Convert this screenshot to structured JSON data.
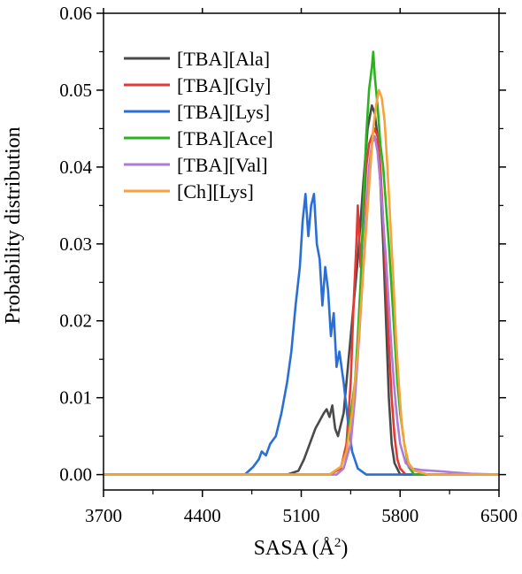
{
  "chart_data": {
    "type": "line",
    "title": "",
    "xlabel": "SASA (Å",
    "xlabel_sup": "2",
    "xlabel_close": ")",
    "ylabel": "Probability distribution",
    "xlim": [
      3700,
      6500
    ],
    "ylim": [
      -0.002,
      0.06
    ],
    "x_ticks": [
      3700,
      4400,
      5100,
      5800,
      6500
    ],
    "x_tick_labels": [
      "3700",
      "4400",
      "5100",
      "5800",
      "6500"
    ],
    "y_ticks": [
      0.0,
      0.01,
      0.02,
      0.03,
      0.04,
      0.05,
      0.06
    ],
    "y_tick_labels": [
      "0.00",
      "0.01",
      "0.02",
      "0.03",
      "0.04",
      "0.05",
      "0.06"
    ],
    "grid": false,
    "legend_position": "top-left",
    "series": [
      {
        "name": "[TBA][Ala]",
        "color": "#4a4a4a",
        "x": [
          3700,
          5000,
          5080,
          5120,
          5160,
          5200,
          5230,
          5260,
          5280,
          5300,
          5320,
          5340,
          5360,
          5400,
          5450,
          5500,
          5540,
          5570,
          5600,
          5620,
          5640,
          5660,
          5680,
          5700,
          5720,
          5740,
          5760,
          5800,
          6500
        ],
        "y": [
          0,
          0,
          0.0005,
          0.002,
          0.004,
          0.006,
          0.007,
          0.008,
          0.0085,
          0.0075,
          0.009,
          0.006,
          0.005,
          0.008,
          0.018,
          0.028,
          0.038,
          0.045,
          0.048,
          0.047,
          0.044,
          0.038,
          0.03,
          0.02,
          0.01,
          0.004,
          0.0015,
          0,
          0
        ]
      },
      {
        "name": "[TBA][Gly]",
        "color": "#e53935",
        "x": [
          3700,
          5300,
          5380,
          5420,
          5450,
          5470,
          5490,
          5500,
          5520,
          5540,
          5560,
          5580,
          5600,
          5620,
          5640,
          5660,
          5680,
          5700,
          5720,
          5740,
          5760,
          5780,
          5800,
          5840,
          6500
        ],
        "y": [
          0,
          0,
          0.0008,
          0.004,
          0.012,
          0.022,
          0.03,
          0.035,
          0.027,
          0.033,
          0.04,
          0.043,
          0.044,
          0.045,
          0.044,
          0.04,
          0.033,
          0.025,
          0.017,
          0.01,
          0.005,
          0.002,
          0.0008,
          0,
          0
        ]
      },
      {
        "name": "[TBA][Lys]",
        "color": "#2a6fd6",
        "x": [
          3700,
          4700,
          4760,
          4800,
          4820,
          4850,
          4880,
          4920,
          4960,
          5000,
          5030,
          5060,
          5090,
          5110,
          5130,
          5150,
          5170,
          5190,
          5210,
          5230,
          5250,
          5270,
          5290,
          5310,
          5330,
          5350,
          5370,
          5400,
          5430,
          5460,
          5500,
          5560,
          6500
        ],
        "y": [
          0,
          0,
          0.001,
          0.002,
          0.003,
          0.0025,
          0.004,
          0.005,
          0.008,
          0.012,
          0.016,
          0.022,
          0.027,
          0.033,
          0.0365,
          0.031,
          0.035,
          0.0365,
          0.03,
          0.028,
          0.022,
          0.027,
          0.024,
          0.018,
          0.021,
          0.014,
          0.016,
          0.012,
          0.007,
          0.003,
          0.0008,
          0,
          0
        ]
      },
      {
        "name": "[TBA][Ace]",
        "color": "#2bb31f",
        "x": [
          3700,
          5300,
          5380,
          5420,
          5450,
          5480,
          5500,
          5520,
          5540,
          5560,
          5580,
          5600,
          5610,
          5620,
          5640,
          5660,
          5680,
          5700,
          5720,
          5740,
          5760,
          5780,
          5800,
          5830,
          5860,
          5900,
          6500
        ],
        "y": [
          0,
          0,
          0.001,
          0.003,
          0.008,
          0.012,
          0.018,
          0.025,
          0.035,
          0.044,
          0.05,
          0.053,
          0.055,
          0.052,
          0.048,
          0.043,
          0.04,
          0.035,
          0.03,
          0.024,
          0.018,
          0.012,
          0.008,
          0.004,
          0.001,
          0,
          0
        ]
      },
      {
        "name": "[TBA][Val]",
        "color": "#b07ad8",
        "x": [
          3700,
          5350,
          5400,
          5450,
          5480,
          5510,
          5540,
          5560,
          5580,
          5600,
          5620,
          5640,
          5660,
          5680,
          5700,
          5720,
          5740,
          5760,
          5780,
          5800,
          5840,
          5880,
          5950,
          6100,
          6300,
          6500
        ],
        "y": [
          0,
          0,
          0.0008,
          0.004,
          0.01,
          0.018,
          0.027,
          0.034,
          0.04,
          0.043,
          0.044,
          0.042,
          0.038,
          0.033,
          0.028,
          0.022,
          0.016,
          0.011,
          0.007,
          0.004,
          0.0015,
          0.0008,
          0.0006,
          0.0004,
          0.0001,
          0
        ]
      },
      {
        "name": "[Ch][Lys]",
        "color": "#f7a23b",
        "x": [
          3700,
          5300,
          5380,
          5420,
          5460,
          5500,
          5530,
          5560,
          5590,
          5610,
          5630,
          5650,
          5670,
          5690,
          5710,
          5730,
          5750,
          5770,
          5790,
          5810,
          5830,
          5860,
          5900,
          6000,
          6500
        ],
        "y": [
          0,
          0,
          0.001,
          0.003,
          0.008,
          0.016,
          0.024,
          0.032,
          0.04,
          0.045,
          0.048,
          0.05,
          0.049,
          0.046,
          0.04,
          0.033,
          0.026,
          0.018,
          0.012,
          0.007,
          0.004,
          0.0015,
          0.0005,
          0,
          0
        ]
      }
    ]
  }
}
